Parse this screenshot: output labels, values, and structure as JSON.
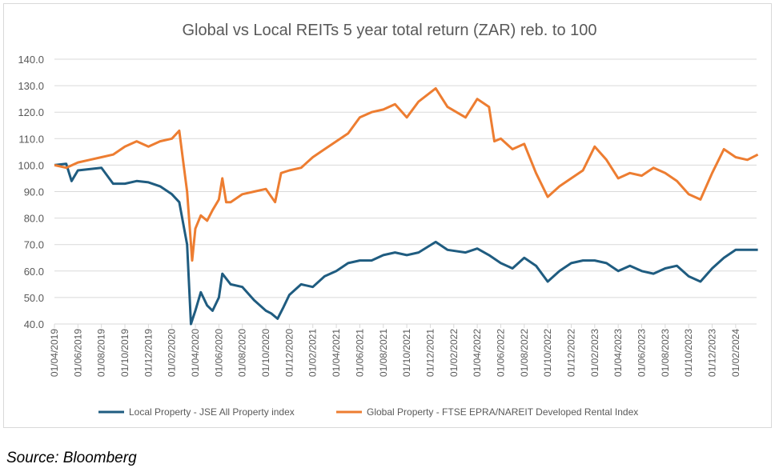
{
  "chart_data": {
    "type": "line",
    "title": "Global vs Local REITs 5 year total return (ZAR) reb. to 100",
    "xlabel": "",
    "ylabel": "",
    "ylim": [
      40,
      140
    ],
    "yticks": [
      "40.0",
      "50.0",
      "60.0",
      "70.0",
      "80.0",
      "90.0",
      "100.0",
      "110.0",
      "120.0",
      "130.0",
      "140.0"
    ],
    "xticks": [
      "01/04/2019",
      "01/06/2019",
      "01/08/2019",
      "01/10/2019",
      "01/12/2019",
      "01/02/2020",
      "01/04/2020",
      "01/06/2020",
      "01/08/2020",
      "01/10/2020",
      "01/12/2020",
      "01/02/2021",
      "01/04/2021",
      "01/06/2021",
      "01/08/2021",
      "01/10/2021",
      "01/12/2021",
      "01/02/2022",
      "01/04/2022",
      "01/06/2022",
      "01/08/2022",
      "01/10/2022",
      "01/12/2022",
      "01/02/2023",
      "01/04/2023",
      "01/06/2023",
      "01/08/2023",
      "01/10/2023",
      "01/12/2023",
      "01/02/2024"
    ],
    "grid": true,
    "legend": "bottom",
    "series": [
      {
        "name": "Local Property - JSE All Property index",
        "color": "#1f5c80",
        "points": [
          [
            "2019-04-01",
            100
          ],
          [
            "2019-05-01",
            100.5
          ],
          [
            "2019-05-15",
            94
          ],
          [
            "2019-06-01",
            98
          ],
          [
            "2019-07-01",
            98.5
          ],
          [
            "2019-08-01",
            99
          ],
          [
            "2019-09-01",
            93
          ],
          [
            "2019-10-01",
            93
          ],
          [
            "2019-11-01",
            94
          ],
          [
            "2019-12-01",
            93.5
          ],
          [
            "2020-01-01",
            92
          ],
          [
            "2020-02-01",
            89
          ],
          [
            "2020-02-20",
            86
          ],
          [
            "2020-03-01",
            77
          ],
          [
            "2020-03-10",
            70
          ],
          [
            "2020-03-20",
            40
          ],
          [
            "2020-04-01",
            45
          ],
          [
            "2020-04-15",
            52
          ],
          [
            "2020-05-01",
            47
          ],
          [
            "2020-05-15",
            45
          ],
          [
            "2020-06-01",
            50
          ],
          [
            "2020-06-10",
            59
          ],
          [
            "2020-07-01",
            55
          ],
          [
            "2020-08-01",
            54
          ],
          [
            "2020-09-01",
            49
          ],
          [
            "2020-10-01",
            45
          ],
          [
            "2020-10-15",
            44
          ],
          [
            "2020-11-01",
            42
          ],
          [
            "2020-11-15",
            46
          ],
          [
            "2020-12-01",
            51
          ],
          [
            "2021-01-01",
            55
          ],
          [
            "2021-02-01",
            54
          ],
          [
            "2021-03-01",
            58
          ],
          [
            "2021-04-01",
            60
          ],
          [
            "2021-05-01",
            63
          ],
          [
            "2021-06-01",
            64
          ],
          [
            "2021-07-01",
            64
          ],
          [
            "2021-08-01",
            66
          ],
          [
            "2021-09-01",
            67
          ],
          [
            "2021-10-01",
            66
          ],
          [
            "2021-11-01",
            67
          ],
          [
            "2021-12-15",
            71
          ],
          [
            "2022-01-15",
            68
          ],
          [
            "2022-03-01",
            67
          ],
          [
            "2022-04-01",
            68.5
          ],
          [
            "2022-05-01",
            66
          ],
          [
            "2022-06-01",
            63
          ],
          [
            "2022-07-01",
            61
          ],
          [
            "2022-08-01",
            65
          ],
          [
            "2022-09-01",
            62
          ],
          [
            "2022-10-01",
            56
          ],
          [
            "2022-11-01",
            60
          ],
          [
            "2022-12-01",
            63
          ],
          [
            "2023-01-01",
            64
          ],
          [
            "2023-02-01",
            64
          ],
          [
            "2023-03-01",
            63
          ],
          [
            "2023-04-01",
            60
          ],
          [
            "2023-05-01",
            62
          ],
          [
            "2023-06-01",
            60
          ],
          [
            "2023-07-01",
            59
          ],
          [
            "2023-08-01",
            61
          ],
          [
            "2023-09-01",
            62
          ],
          [
            "2023-10-01",
            58
          ],
          [
            "2023-11-01",
            56
          ],
          [
            "2023-12-01",
            61
          ],
          [
            "2024-01-01",
            65
          ],
          [
            "2024-02-01",
            68
          ],
          [
            "2024-03-01",
            68
          ],
          [
            "2024-03-28",
            68
          ]
        ]
      },
      {
        "name": "Global Property - FTSE EPRA/NAREIT Developed Rental Index",
        "color": "#ed7d31",
        "points": [
          [
            "2019-04-01",
            100
          ],
          [
            "2019-05-01",
            99
          ],
          [
            "2019-06-01",
            101
          ],
          [
            "2019-07-01",
            102
          ],
          [
            "2019-08-01",
            103
          ],
          [
            "2019-09-01",
            104
          ],
          [
            "2019-10-01",
            107
          ],
          [
            "2019-11-01",
            109
          ],
          [
            "2019-12-01",
            107
          ],
          [
            "2020-01-01",
            109
          ],
          [
            "2020-02-01",
            110
          ],
          [
            "2020-02-20",
            113
          ],
          [
            "2020-03-01",
            100
          ],
          [
            "2020-03-10",
            90
          ],
          [
            "2020-03-23",
            64
          ],
          [
            "2020-04-01",
            76
          ],
          [
            "2020-04-15",
            81
          ],
          [
            "2020-05-01",
            79
          ],
          [
            "2020-05-15",
            83
          ],
          [
            "2020-06-01",
            87
          ],
          [
            "2020-06-10",
            95
          ],
          [
            "2020-06-20",
            86
          ],
          [
            "2020-07-01",
            86
          ],
          [
            "2020-08-01",
            89
          ],
          [
            "2020-09-01",
            90
          ],
          [
            "2020-10-01",
            91
          ],
          [
            "2020-10-25",
            86
          ],
          [
            "2020-11-10",
            97
          ],
          [
            "2020-12-01",
            98
          ],
          [
            "2021-01-01",
            99
          ],
          [
            "2021-02-01",
            103
          ],
          [
            "2021-03-01",
            106
          ],
          [
            "2021-04-01",
            109
          ],
          [
            "2021-05-01",
            112
          ],
          [
            "2021-06-01",
            118
          ],
          [
            "2021-07-01",
            120
          ],
          [
            "2021-08-01",
            121
          ],
          [
            "2021-09-01",
            123
          ],
          [
            "2021-10-01",
            118
          ],
          [
            "2021-11-01",
            124
          ],
          [
            "2021-12-15",
            129
          ],
          [
            "2022-01-15",
            122
          ],
          [
            "2022-03-01",
            118
          ],
          [
            "2022-04-01",
            125
          ],
          [
            "2022-05-01",
            122
          ],
          [
            "2022-05-15",
            109
          ],
          [
            "2022-06-01",
            110
          ],
          [
            "2022-07-01",
            106
          ],
          [
            "2022-08-01",
            108
          ],
          [
            "2022-09-01",
            97
          ],
          [
            "2022-10-01",
            88
          ],
          [
            "2022-11-01",
            92
          ],
          [
            "2022-12-01",
            95
          ],
          [
            "2023-01-01",
            98
          ],
          [
            "2023-02-01",
            107
          ],
          [
            "2023-03-01",
            102
          ],
          [
            "2023-04-01",
            95
          ],
          [
            "2023-05-01",
            97
          ],
          [
            "2023-06-01",
            96
          ],
          [
            "2023-07-01",
            99
          ],
          [
            "2023-08-01",
            97
          ],
          [
            "2023-09-01",
            94
          ],
          [
            "2023-10-01",
            89
          ],
          [
            "2023-11-01",
            87
          ],
          [
            "2023-12-01",
            97
          ],
          [
            "2024-01-01",
            106
          ],
          [
            "2024-02-01",
            103
          ],
          [
            "2024-03-01",
            102
          ],
          [
            "2024-03-28",
            104
          ]
        ]
      }
    ]
  },
  "source": "Source: Bloomberg"
}
